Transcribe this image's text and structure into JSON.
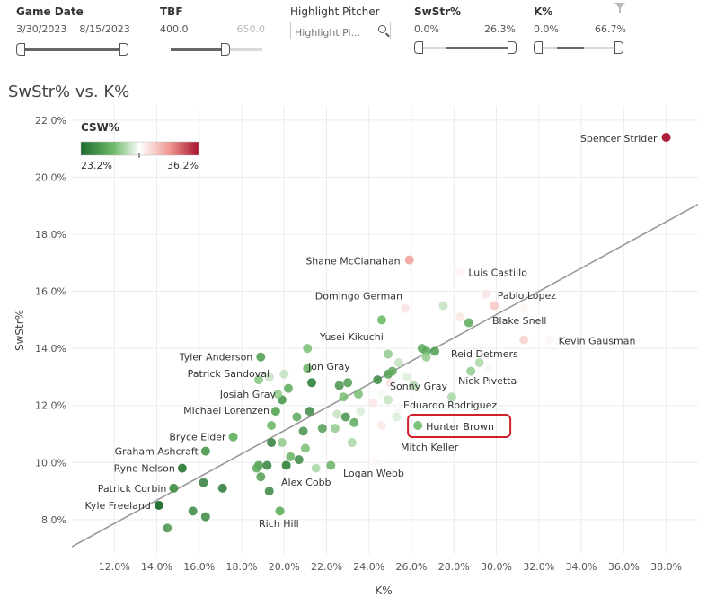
{
  "filters": {
    "game_date": {
      "label": "Game Date",
      "start": "3/30/2023",
      "end": "8/15/2023"
    },
    "tbf": {
      "label": "TBF",
      "min": "400.0",
      "max": "650.0",
      "level": 0.38
    },
    "highlight": {
      "label": "Highlight Pitcher",
      "placeholder": "Highlight Pi..."
    },
    "swstr": {
      "label": "SwStr%",
      "min": "0.0%",
      "max": "26.3%"
    },
    "k": {
      "label": "K%",
      "min": "0.0%",
      "max": "66.7%"
    }
  },
  "icons": {
    "filter": "funnel-icon",
    "search": "search-icon"
  },
  "chart_data": {
    "type": "scatter",
    "title": "SwStr% vs. K%",
    "xlabel": "K%",
    "ylabel": "SwStr%",
    "xlim": [
      10.0,
      39.5
    ],
    "ylim": [
      6.8,
      22.5
    ],
    "xticks": [
      "12.0%",
      "14.0%",
      "16.0%",
      "18.0%",
      "20.0%",
      "22.0%",
      "24.0%",
      "26.0%",
      "28.0%",
      "30.0%",
      "32.0%",
      "34.0%",
      "36.0%",
      "38.0%"
    ],
    "yticks": [
      "8.0%",
      "10.0%",
      "12.0%",
      "14.0%",
      "16.0%",
      "18.0%",
      "20.0%",
      "22.0%"
    ],
    "grid": true,
    "color_legend": {
      "title": "CSW%",
      "min": "23.2%",
      "max": "36.2%",
      "min_value": 23.2,
      "max_value": 36.2,
      "colors": [
        "#2e7d32",
        "#ffffff",
        "#b5172f"
      ],
      "placement": "top-left"
    },
    "trendline": {
      "x": [
        10.0,
        39.5
      ],
      "y": [
        7.05,
        19.05
      ],
      "color": "#999999"
    },
    "highlighted": "Hunter Brown",
    "points": [
      {
        "name": "Spencer Strider",
        "x": 38.0,
        "y": 21.4,
        "csw": 36.2
      },
      {
        "name": "Shane McClanahan",
        "x": 25.9,
        "y": 17.1,
        "csw": 32.5
      },
      {
        "name": "Luis Castillo",
        "x": 28.3,
        "y": 16.7,
        "csw": 30.0
      },
      {
        "name": "Domingo German",
        "x": 25.7,
        "y": 15.4,
        "csw": 30.5
      },
      {
        "name": "Pablo Lopez",
        "x": 29.5,
        "y": 15.9,
        "csw": 30.5
      },
      {
        "name": "Blake Snell",
        "x": 31.3,
        "y": 14.3,
        "csw": 31.0
      },
      {
        "name": "Kevin Gausman",
        "x": 32.5,
        "y": 14.3,
        "csw": 30.0
      },
      {
        "name": "Yusei Kikuchi",
        "x": 24.6,
        "y": 15.0,
        "csw": 27.0
      },
      {
        "name": "Reid Detmers",
        "x": 26.7,
        "y": 13.9,
        "csw": 26.5
      },
      {
        "name": "Nick Pivetta",
        "x": 29.6,
        "y": 13.3,
        "csw": 29.5
      },
      {
        "name": "Sonny Gray",
        "x": 25.0,
        "y": 12.8,
        "csw": 30.5
      },
      {
        "name": "Eduardo Rodriguez",
        "x": 25.4,
        "y": 11.9,
        "csw": 29.5
      },
      {
        "name": "Hunter Brown",
        "x": 26.3,
        "y": 11.3,
        "csw": 27.0
      },
      {
        "name": "Mitch Keller",
        "x": 25.3,
        "y": 11.6,
        "csw": 29.0
      },
      {
        "name": "Logan Webb",
        "x": 24.3,
        "y": 10.0,
        "csw": 30.0
      },
      {
        "name": "Tyler Anderson",
        "x": 18.9,
        "y": 13.7,
        "csw": 26.0
      },
      {
        "name": "Patrick Sandoval",
        "x": 18.8,
        "y": 12.9,
        "csw": 27.5
      },
      {
        "name": "Jon Gray",
        "x": 21.3,
        "y": 12.8,
        "csw": 24.5
      },
      {
        "name": "Josiah Gray",
        "x": 19.9,
        "y": 12.2,
        "csw": 25.5
      },
      {
        "name": "Michael Lorenzen",
        "x": 19.6,
        "y": 11.8,
        "csw": 26.0
      },
      {
        "name": "Bryce Elder",
        "x": 17.6,
        "y": 10.9,
        "csw": 26.5
      },
      {
        "name": "Graham Ashcraft",
        "x": 16.3,
        "y": 10.4,
        "csw": 25.5
      },
      {
        "name": "Ryne Nelson",
        "x": 15.2,
        "y": 9.8,
        "csw": 24.0
      },
      {
        "name": "Patrick Corbin",
        "x": 14.8,
        "y": 9.1,
        "csw": 25.0
      },
      {
        "name": "Kyle Freeland",
        "x": 14.1,
        "y": 8.5,
        "csw": 23.2
      },
      {
        "name": "Alex Cobb",
        "x": 20.1,
        "y": 9.9,
        "csw": 24.5
      },
      {
        "name": "Rich Hill",
        "x": 19.8,
        "y": 8.3,
        "csw": 26.5
      },
      {
        "name": "",
        "x": 14.5,
        "y": 7.7,
        "csw": 25.0
      },
      {
        "name": "",
        "x": 15.7,
        "y": 8.3,
        "csw": 24.5
      },
      {
        "name": "",
        "x": 16.3,
        "y": 8.1,
        "csw": 24.5
      },
      {
        "name": "",
        "x": 16.2,
        "y": 9.3,
        "csw": 24.0
      },
      {
        "name": "",
        "x": 17.1,
        "y": 9.1,
        "csw": 23.8
      },
      {
        "name": "",
        "x": 18.8,
        "y": 9.9,
        "csw": 25.5
      },
      {
        "name": "",
        "x": 19.2,
        "y": 9.9,
        "csw": 24.2
      },
      {
        "name": "",
        "x": 19.4,
        "y": 10.7,
        "csw": 24.0
      },
      {
        "name": "",
        "x": 19.3,
        "y": 9.0,
        "csw": 24.5
      },
      {
        "name": "",
        "x": 18.7,
        "y": 9.8,
        "csw": 26.0
      },
      {
        "name": "",
        "x": 18.9,
        "y": 9.5,
        "csw": 25.5
      },
      {
        "name": "",
        "x": 19.4,
        "y": 11.3,
        "csw": 26.5
      },
      {
        "name": "",
        "x": 19.9,
        "y": 10.7,
        "csw": 27.5
      },
      {
        "name": "",
        "x": 20.3,
        "y": 10.2,
        "csw": 26.5
      },
      {
        "name": "",
        "x": 20.6,
        "y": 11.6,
        "csw": 26.0
      },
      {
        "name": "",
        "x": 20.9,
        "y": 11.1,
        "csw": 25.0
      },
      {
        "name": "",
        "x": 21.2,
        "y": 11.8,
        "csw": 24.5
      },
      {
        "name": "",
        "x": 21.0,
        "y": 10.5,
        "csw": 27.0
      },
      {
        "name": "",
        "x": 21.8,
        "y": 11.2,
        "csw": 25.5
      },
      {
        "name": "",
        "x": 20.7,
        "y": 10.1,
        "csw": 24.5
      },
      {
        "name": "",
        "x": 21.5,
        "y": 9.8,
        "csw": 28.0
      },
      {
        "name": "",
        "x": 22.2,
        "y": 9.9,
        "csw": 26.5
      },
      {
        "name": "",
        "x": 21.1,
        "y": 14.0,
        "csw": 27.0
      },
      {
        "name": "",
        "x": 21.1,
        "y": 13.3,
        "csw": 26.5
      },
      {
        "name": "",
        "x": 20.2,
        "y": 12.6,
        "csw": 26.0
      },
      {
        "name": "",
        "x": 20.0,
        "y": 13.1,
        "csw": 28.5
      },
      {
        "name": "",
        "x": 19.7,
        "y": 12.4,
        "csw": 27.5
      },
      {
        "name": "",
        "x": 19.3,
        "y": 13.0,
        "csw": 28.5
      },
      {
        "name": "",
        "x": 22.6,
        "y": 12.7,
        "csw": 25.0
      },
      {
        "name": "",
        "x": 22.8,
        "y": 12.3,
        "csw": 27.0
      },
      {
        "name": "",
        "x": 23.0,
        "y": 12.8,
        "csw": 25.5
      },
      {
        "name": "",
        "x": 23.5,
        "y": 12.4,
        "csw": 27.0
      },
      {
        "name": "",
        "x": 22.9,
        "y": 11.6,
        "csw": 25.0
      },
      {
        "name": "",
        "x": 22.5,
        "y": 11.7,
        "csw": 28.5
      },
      {
        "name": "",
        "x": 23.3,
        "y": 11.4,
        "csw": 26.0
      },
      {
        "name": "",
        "x": 23.6,
        "y": 11.8,
        "csw": 29.0
      },
      {
        "name": "",
        "x": 22.4,
        "y": 11.2,
        "csw": 27.5
      },
      {
        "name": "",
        "x": 23.2,
        "y": 10.7,
        "csw": 28.0
      },
      {
        "name": "",
        "x": 24.2,
        "y": 12.1,
        "csw": 30.5
      },
      {
        "name": "",
        "x": 24.6,
        "y": 12.4,
        "csw": 29.5
      },
      {
        "name": "",
        "x": 24.9,
        "y": 12.2,
        "csw": 28.5
      },
      {
        "name": "",
        "x": 24.4,
        "y": 12.9,
        "csw": 24.5
      },
      {
        "name": "",
        "x": 24.9,
        "y": 13.1,
        "csw": 25.5
      },
      {
        "name": "",
        "x": 25.1,
        "y": 13.2,
        "csw": 26.0
      },
      {
        "name": "",
        "x": 25.4,
        "y": 13.5,
        "csw": 28.5
      },
      {
        "name": "",
        "x": 25.8,
        "y": 13.0,
        "csw": 29.0
      },
      {
        "name": "",
        "x": 26.1,
        "y": 12.7,
        "csw": 28.0
      },
      {
        "name": "",
        "x": 26.7,
        "y": 13.7,
        "csw": 27.5
      },
      {
        "name": "",
        "x": 26.5,
        "y": 14.0,
        "csw": 26.0
      },
      {
        "name": "",
        "x": 27.1,
        "y": 13.9,
        "csw": 25.5
      },
      {
        "name": "",
        "x": 24.9,
        "y": 13.8,
        "csw": 27.5
      },
      {
        "name": "",
        "x": 27.5,
        "y": 15.5,
        "csw": 28.5
      },
      {
        "name": "",
        "x": 28.3,
        "y": 15.1,
        "csw": 30.5
      },
      {
        "name": "",
        "x": 28.7,
        "y": 14.9,
        "csw": 26.0
      },
      {
        "name": "",
        "x": 29.9,
        "y": 15.5,
        "csw": 31.5
      },
      {
        "name": "",
        "x": 31.3,
        "y": 15.4,
        "csw": 30.0
      },
      {
        "name": "",
        "x": 29.2,
        "y": 13.5,
        "csw": 28.0
      },
      {
        "name": "",
        "x": 28.8,
        "y": 13.2,
        "csw": 27.5
      },
      {
        "name": "",
        "x": 24.6,
        "y": 11.3,
        "csw": 30.5
      },
      {
        "name": "",
        "x": 27.9,
        "y": 12.3,
        "csw": 28.0
      }
    ]
  }
}
